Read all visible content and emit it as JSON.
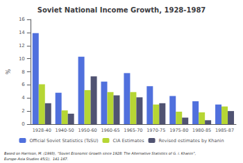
{
  "chart_data": {
    "type": "bar",
    "title": "Soviet National Income Growth, 1928-1987",
    "categories": [
      "1928-40",
      "1940-50",
      "1950-60",
      "1960-65",
      "1965-70",
      "1970-75",
      "1975-80",
      "1980-85",
      "1985-87"
    ],
    "series": [
      {
        "name": "Official Soviet Statistics (TsSU)",
        "values": [
          13.9,
          4.8,
          10.3,
          6.5,
          7.8,
          5.8,
          4.3,
          3.5,
          3.0
        ]
      },
      {
        "name": "CIA Estimates",
        "values": [
          6.1,
          2.1,
          5.2,
          4.9,
          4.9,
          3.0,
          1.9,
          1.8,
          2.7
        ]
      },
      {
        "name": "Revised estimates by Khanin",
        "values": [
          3.2,
          1.6,
          7.3,
          4.4,
          4.1,
          3.2,
          1.0,
          0.6,
          2.0
        ]
      }
    ],
    "ylabel": "%",
    "ylim": [
      0,
      16
    ],
    "yticks": [
      0,
      2,
      4,
      6,
      8,
      10,
      12,
      14,
      16
    ],
    "grid": false,
    "legend": "bottom",
    "annotations": [
      "Based on Harrison, M. (1993), “Soviet Economic Growth since 1928: The Alternative Statistics of G. i. Khanin”,",
      "Europe-Asia Studies 45(1),  141-167."
    ]
  }
}
